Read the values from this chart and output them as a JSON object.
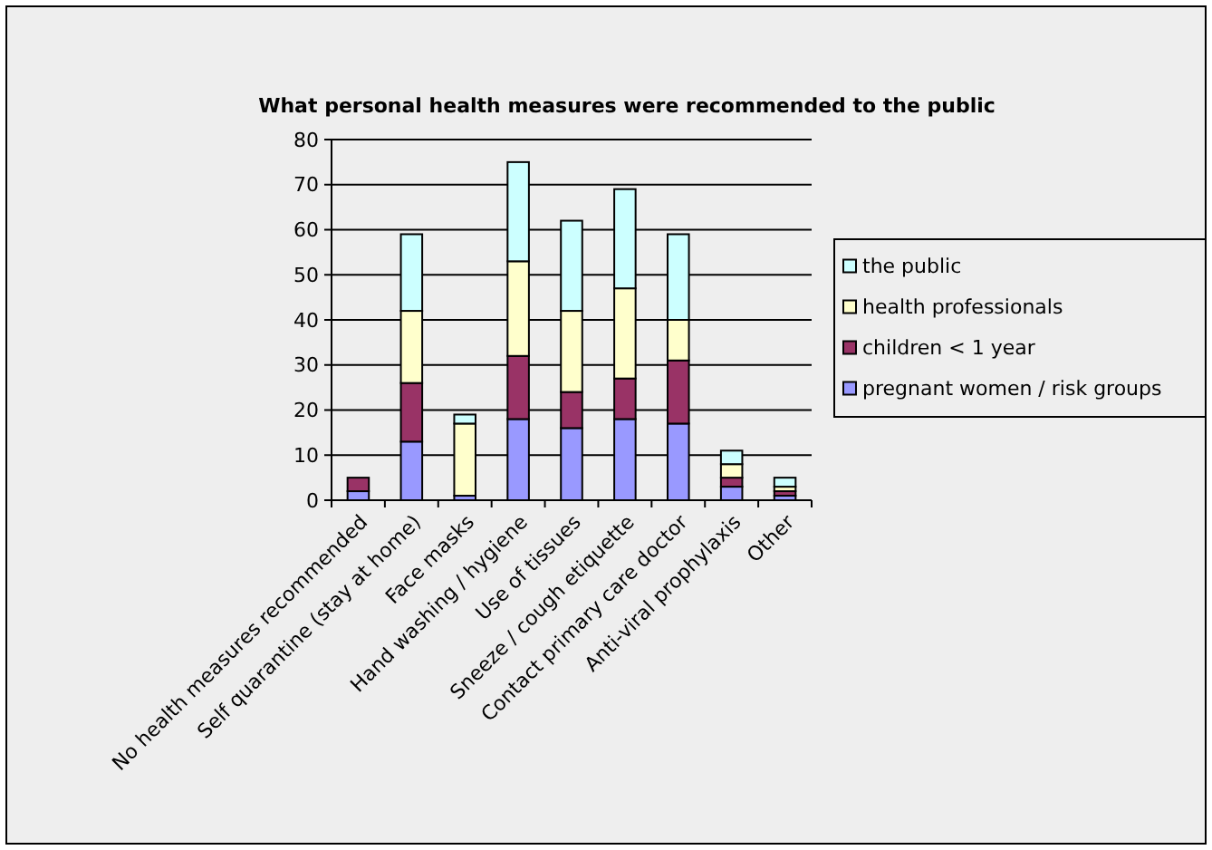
{
  "chart_data": {
    "type": "bar",
    "title": "What personal health measures were recommended to the public",
    "categories": [
      "No health measures recommended",
      "Self quarantine (stay at home)",
      "Face masks",
      "Hand washing / hygiene",
      "Use of tissues",
      "Sneeze / cough etiquette",
      "Contact primary care doctor",
      "Anti-viral prophylaxis",
      "Other"
    ],
    "series": [
      {
        "name": "pregnant women / risk groups",
        "color": "#9999ff",
        "values": [
          2,
          13,
          1,
          18,
          16,
          18,
          17,
          3,
          1
        ]
      },
      {
        "name": "children < 1 year",
        "color": "#993366",
        "values": [
          3,
          13,
          0,
          14,
          8,
          9,
          14,
          2,
          1
        ]
      },
      {
        "name": "health professionals",
        "color": "#ffffcc",
        "values": [
          0,
          16,
          16,
          21,
          18,
          20,
          9,
          3,
          1
        ]
      },
      {
        "name": "the public",
        "color": "#ccffff",
        "values": [
          0,
          17,
          2,
          22,
          20,
          22,
          19,
          3,
          2
        ]
      }
    ],
    "stacked": true,
    "ylim": [
      0,
      80
    ],
    "yticks": [
      0,
      10,
      20,
      30,
      40,
      50,
      60,
      70,
      80
    ],
    "grid": "y",
    "legend": "right"
  }
}
